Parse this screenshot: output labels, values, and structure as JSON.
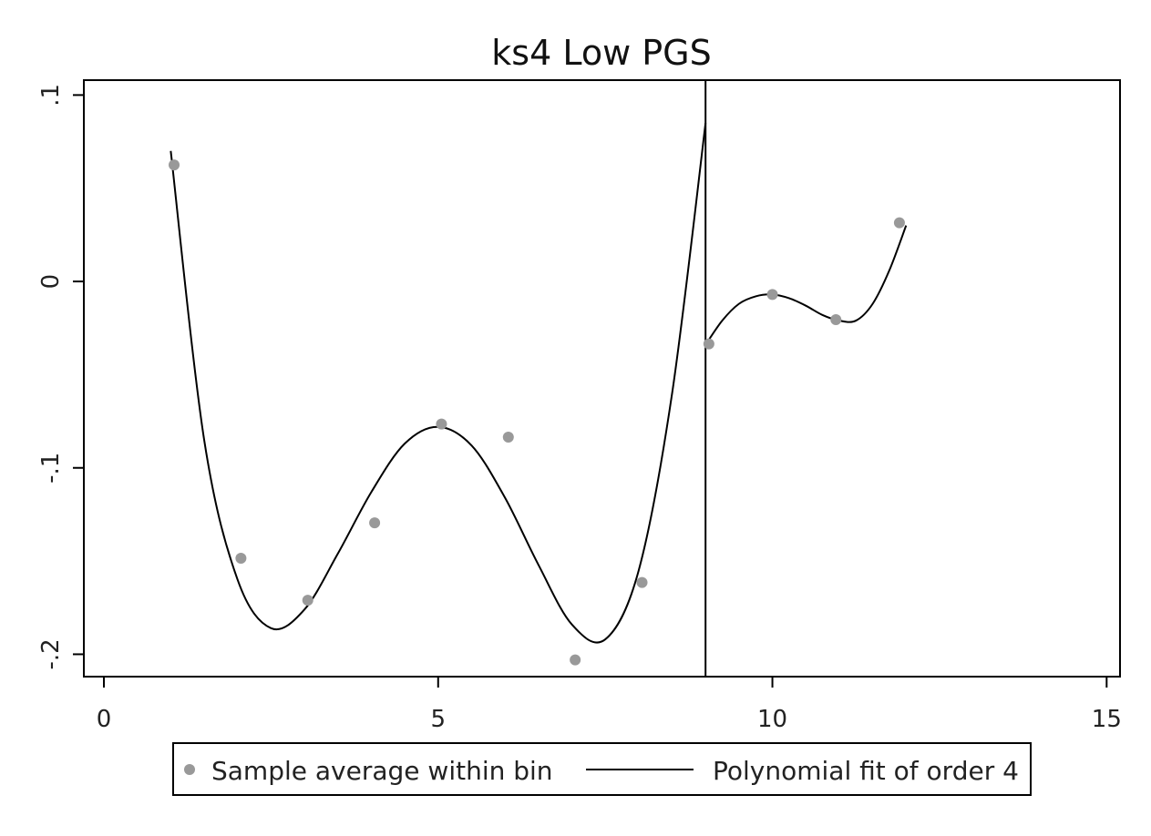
{
  "chart_data": {
    "type": "scatter",
    "title": "ks4 Low PGS",
    "xlabel": "",
    "ylabel": "",
    "xlim": [
      -0.3,
      15.2
    ],
    "ylim": [
      -0.212,
      0.108
    ],
    "xticks": [
      0,
      5,
      10,
      15
    ],
    "xtick_labels": [
      "0",
      "5",
      "10",
      "15"
    ],
    "yticks": [
      -0.2,
      -0.1,
      0,
      0.1
    ],
    "ytick_labels": [
      "-.2",
      "-.1",
      "0",
      ".1"
    ],
    "cutoff_x": 9,
    "grid": false,
    "legend_position": "bottom",
    "series": [
      {
        "name": "Sample average within bin",
        "kind": "points",
        "color": "#999999",
        "x": [
          1.05,
          2.05,
          3.05,
          4.05,
          5.05,
          6.05,
          7.05,
          8.05,
          9.05,
          10.0,
          10.95,
          11.9
        ],
        "y": [
          0.0625,
          -0.1485,
          -0.171,
          -0.1295,
          -0.0765,
          -0.0835,
          -0.203,
          -0.1615,
          -0.0335,
          -0.007,
          -0.0205,
          0.0315
        ]
      },
      {
        "name": "Polynomial fit of order 4",
        "kind": "line",
        "color": "#000000",
        "segments": [
          {
            "x": [
              1.0,
              1.5,
              2.0,
              2.5,
              3.0,
              3.5,
              4.0,
              4.5,
              5.0,
              5.5,
              6.0,
              6.5,
              7.0,
              7.5,
              8.0,
              8.5,
              9.0
            ],
            "y": [
              0.07,
              -0.085,
              -0.16,
              -0.186,
              -0.176,
              -0.146,
              -0.113,
              -0.087,
              -0.078,
              -0.088,
              -0.116,
              -0.152,
              -0.184,
              -0.192,
              -0.155,
              -0.06,
              0.085
            ]
          },
          {
            "x": [
              9.0,
              9.25,
              9.5,
              9.75,
              10.0,
              10.25,
              10.5,
              10.75,
              11.0,
              11.25,
              11.5,
              11.75,
              12.0
            ],
            "y": [
              -0.034,
              -0.021,
              -0.012,
              -0.008,
              -0.007,
              -0.009,
              -0.013,
              -0.018,
              -0.021,
              -0.021,
              -0.012,
              0.006,
              0.03
            ]
          }
        ]
      }
    ]
  }
}
